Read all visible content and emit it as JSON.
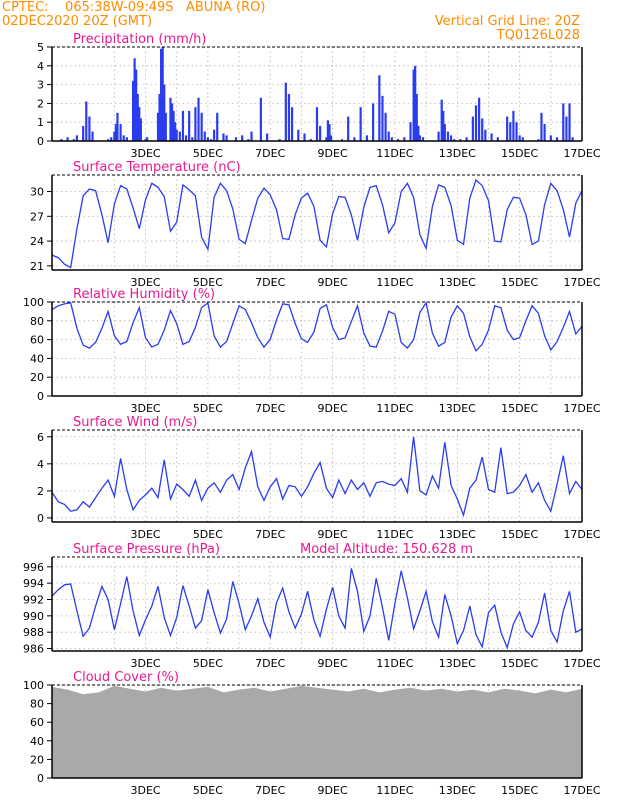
{
  "header": {
    "line1_left": "CPTEC:    065:38W-09:49S   ABUNA (RO)",
    "line2_left": "02DEC2020 20Z (GMT)",
    "line1_right": "Vertical Grid Line: 20Z",
    "line2_right": "TQ0126L028"
  },
  "colors": {
    "header": "#ff8c00",
    "title": "#e8198f",
    "line": "#2a3cf0",
    "bar": "#2a3cf0",
    "cloud": "#a9a9a9"
  },
  "x_labels": [
    "3DEC",
    "5DEC",
    "7DEC",
    "9DEC",
    "11DEC",
    "13DEC",
    "15DEC",
    "17DEC"
  ],
  "chart_data": [
    {
      "type": "bar",
      "title": "Precipitation (mm/h)",
      "ylim": [
        0,
        5
      ],
      "y_ticks": [
        0,
        1,
        2,
        3,
        4,
        5
      ],
      "x": [
        0.3,
        0.5,
        0.7,
        0.8,
        1.0,
        1.1,
        1.2,
        1.3,
        1.8,
        1.9,
        2.0,
        2.05,
        2.1,
        2.2,
        2.3,
        2.4,
        2.6,
        2.65,
        2.7,
        2.75,
        2.8,
        2.85,
        3.0,
        3.05,
        3.4,
        3.45,
        3.5,
        3.55,
        3.6,
        3.65,
        3.8,
        3.85,
        3.9,
        3.95,
        4.0,
        4.1,
        4.2,
        4.3,
        4.4,
        4.5,
        4.6,
        4.7,
        4.8,
        4.9,
        5.0,
        5.1,
        5.2,
        5.3,
        5.5,
        5.6,
        5.9,
        6.1,
        6.3,
        6.4,
        6.7,
        6.9,
        7.3,
        7.5,
        7.6,
        7.7,
        7.9,
        8.1,
        8.3,
        8.5,
        8.6,
        8.8,
        8.85,
        8.9,
        8.95,
        9.3,
        9.5,
        9.7,
        9.9,
        10.1,
        10.3,
        10.5,
        10.6,
        10.7,
        10.8,
        10.9,
        11.1,
        11.3,
        11.5,
        11.6,
        11.65,
        11.7,
        11.75,
        11.8,
        11.9,
        12.4,
        12.5,
        12.55,
        12.6,
        12.7,
        12.8,
        12.9,
        13.1,
        13.3,
        13.5,
        13.6,
        13.7,
        13.8,
        13.9,
        14.1,
        14.3,
        14.6,
        14.7,
        14.8,
        14.9,
        15.0,
        15.1,
        15.6,
        15.7,
        15.8,
        16.0,
        16.2,
        16.4,
        16.5,
        16.6,
        16.7
      ],
      "values": [
        0.1,
        0.2,
        0.1,
        0.3,
        0.8,
        2.1,
        1.3,
        0.5,
        0.1,
        0.2,
        0.5,
        0.9,
        1.5,
        0.9,
        0.3,
        0.2,
        3.2,
        4.4,
        3.8,
        2.5,
        1.8,
        1.2,
        0.1,
        0.2,
        1.5,
        2.5,
        4.9,
        5.0,
        3.0,
        1.5,
        2.3,
        2.0,
        1.6,
        1.0,
        0.6,
        0.5,
        1.6,
        0.3,
        1.6,
        0.2,
        1.8,
        2.3,
        1.5,
        0.5,
        0.2,
        0.1,
        0.6,
        1.5,
        0.4,
        0.3,
        0.2,
        0.3,
        0.1,
        0.5,
        2.3,
        0.4,
        0.1,
        3.1,
        2.5,
        1.8,
        0.6,
        0.4,
        0.1,
        1.8,
        0.8,
        0.2,
        1.1,
        0.9,
        0.3,
        0.1,
        1.3,
        0.2,
        1.8,
        0.3,
        2.0,
        3.5,
        2.4,
        1.5,
        0.5,
        0.2,
        0.1,
        0.2,
        1.0,
        3.8,
        4.0,
        2.5,
        0.8,
        0.3,
        0.2,
        0.5,
        2.2,
        1.6,
        0.9,
        0.5,
        0.3,
        0.1,
        0.1,
        0.2,
        1.3,
        1.9,
        2.3,
        1.2,
        0.6,
        0.4,
        0.2,
        1.3,
        1.0,
        1.6,
        1.0,
        0.3,
        0.2,
        0.1,
        1.5,
        0.9,
        0.3,
        0.2,
        2.0,
        1.3,
        2.0,
        0.2
      ]
    },
    {
      "type": "line",
      "title": "Surface Temperature (nC)",
      "ylim": [
        20.5,
        32
      ],
      "y_ticks": [
        21,
        24,
        27,
        30
      ],
      "x": [
        0.0,
        0.2,
        0.4,
        0.6,
        0.8,
        1.0,
        1.2,
        1.4,
        1.6,
        1.8,
        2.0,
        2.2,
        2.4,
        2.6,
        2.8,
        3.0,
        3.2,
        3.4,
        3.6,
        3.8,
        4.0,
        4.2,
        4.4,
        4.6,
        4.8,
        5.0,
        5.2,
        5.4,
        5.6,
        5.8,
        6.0,
        6.2,
        6.4,
        6.6,
        6.8,
        7.0,
        7.2,
        7.4,
        7.6,
        7.8,
        8.0,
        8.2,
        8.4,
        8.6,
        8.8,
        9.0,
        9.2,
        9.4,
        9.6,
        9.8,
        10.0,
        10.2,
        10.4,
        10.6,
        10.8,
        11.0,
        11.2,
        11.4,
        11.6,
        11.8,
        12.0,
        12.2,
        12.4,
        12.6,
        12.8,
        13.0,
        13.2,
        13.4,
        13.6,
        13.8,
        14.0,
        14.2,
        14.4,
        14.6,
        14.8,
        15.0,
        15.2,
        15.4,
        15.6,
        15.8,
        16.0,
        16.2,
        16.4,
        16.6,
        16.8,
        17.0
      ],
      "values": [
        22.3,
        22.0,
        21.2,
        20.8,
        25.5,
        29.5,
        30.3,
        30.1,
        27.2,
        23.8,
        28.5,
        30.7,
        30.3,
        28.0,
        25.5,
        29.0,
        31.0,
        30.5,
        29.4,
        25.2,
        26.3,
        30.8,
        30.2,
        29.5,
        24.5,
        23.0,
        29.3,
        31.0,
        30.1,
        27.9,
        24.2,
        23.7,
        26.5,
        29.2,
        30.4,
        29.6,
        27.8,
        24.3,
        24.2,
        27.2,
        29.2,
        29.8,
        28.2,
        24.1,
        23.3,
        27.3,
        29.4,
        29.3,
        27.2,
        24.1,
        28.1,
        30.5,
        30.7,
        28.4,
        25.0,
        26.2,
        30.0,
        31.0,
        29.3,
        24.8,
        23.1,
        28.2,
        30.8,
        30.5,
        28.3,
        24.1,
        23.6,
        29.2,
        31.4,
        30.7,
        28.9,
        24.0,
        23.9,
        27.8,
        29.3,
        29.2,
        27.2,
        23.6,
        24.0,
        28.4,
        31.0,
        30.1,
        27.8,
        24.5,
        28.6,
        30.1
      ]
    },
    {
      "type": "line",
      "title": "Relative Humidity (%)",
      "ylim": [
        0,
        100
      ],
      "y_ticks": [
        0,
        20,
        40,
        60,
        80,
        100
      ],
      "x": [
        0.0,
        0.2,
        0.4,
        0.6,
        0.8,
        1.0,
        1.2,
        1.4,
        1.6,
        1.8,
        2.0,
        2.2,
        2.4,
        2.6,
        2.8,
        3.0,
        3.2,
        3.4,
        3.6,
        3.8,
        4.0,
        4.2,
        4.4,
        4.6,
        4.8,
        5.0,
        5.2,
        5.4,
        5.6,
        5.8,
        6.0,
        6.2,
        6.4,
        6.6,
        6.8,
        7.0,
        7.2,
        7.4,
        7.6,
        7.8,
        8.0,
        8.2,
        8.4,
        8.6,
        8.8,
        9.0,
        9.2,
        9.4,
        9.6,
        9.8,
        10.0,
        10.2,
        10.4,
        10.6,
        10.8,
        11.0,
        11.2,
        11.4,
        11.6,
        11.8,
        12.0,
        12.2,
        12.4,
        12.6,
        12.8,
        13.0,
        13.2,
        13.4,
        13.6,
        13.8,
        14.0,
        14.2,
        14.4,
        14.6,
        14.8,
        15.0,
        15.2,
        15.4,
        15.6,
        15.8,
        16.0,
        16.2,
        16.4,
        16.6,
        16.8,
        17.0
      ],
      "values": [
        92,
        96,
        98,
        99,
        72,
        54,
        51,
        57,
        72,
        90,
        64,
        55,
        58,
        78,
        94,
        62,
        52,
        55,
        70,
        91,
        77,
        55,
        58,
        73,
        94,
        99,
        64,
        52,
        58,
        77,
        96,
        92,
        78,
        62,
        52,
        60,
        81,
        98,
        97,
        77,
        61,
        57,
        68,
        93,
        97,
        73,
        60,
        62,
        79,
        96,
        67,
        53,
        52,
        69,
        90,
        87,
        57,
        51,
        60,
        89,
        99,
        67,
        53,
        57,
        84,
        96,
        88,
        63,
        48,
        55,
        70,
        96,
        94,
        70,
        60,
        62,
        80,
        96,
        88,
        64,
        49,
        58,
        73,
        90,
        66,
        74
      ]
    },
    {
      "type": "line",
      "title": "Surface Wind (m/s)",
      "ylim": [
        -0.3,
        6.5
      ],
      "y_ticks": [
        0,
        2,
        4,
        6
      ],
      "x": [
        0.0,
        0.2,
        0.4,
        0.6,
        0.8,
        1.0,
        1.2,
        1.4,
        1.6,
        1.8,
        2.0,
        2.2,
        2.4,
        2.6,
        2.8,
        3.0,
        3.2,
        3.4,
        3.6,
        3.8,
        4.0,
        4.2,
        4.4,
        4.6,
        4.8,
        5.0,
        5.2,
        5.4,
        5.6,
        5.8,
        6.0,
        6.2,
        6.4,
        6.6,
        6.8,
        7.0,
        7.2,
        7.4,
        7.6,
        7.8,
        8.0,
        8.2,
        8.4,
        8.6,
        8.8,
        9.0,
        9.2,
        9.4,
        9.6,
        9.8,
        10.0,
        10.2,
        10.4,
        10.6,
        10.8,
        11.0,
        11.2,
        11.4,
        11.6,
        11.8,
        12.0,
        12.2,
        12.4,
        12.6,
        12.8,
        13.0,
        13.2,
        13.4,
        13.6,
        13.8,
        14.0,
        14.2,
        14.4,
        14.6,
        14.8,
        15.0,
        15.2,
        15.4,
        15.6,
        15.8,
        16.0,
        16.2,
        16.4,
        16.6,
        16.8,
        17.0
      ],
      "values": [
        1.9,
        1.2,
        1.0,
        0.5,
        0.6,
        1.2,
        0.8,
        1.5,
        2.2,
        2.8,
        1.6,
        4.4,
        2.1,
        0.6,
        1.3,
        1.7,
        2.2,
        1.5,
        4.3,
        1.4,
        2.5,
        2.1,
        1.6,
        2.8,
        1.3,
        2.2,
        2.6,
        1.9,
        2.8,
        3.2,
        2.1,
        3.7,
        4.9,
        2.3,
        1.3,
        2.3,
        2.9,
        1.4,
        2.4,
        2.3,
        1.6,
        2.3,
        3.3,
        4.1,
        2.2,
        1.5,
        2.8,
        1.8,
        2.8,
        2.1,
        2.6,
        1.6,
        2.6,
        2.7,
        2.5,
        2.4,
        2.9,
        1.9,
        6.0,
        2.0,
        1.7,
        3.1,
        2.2,
        5.6,
        2.4,
        1.4,
        0.2,
        2.2,
        2.8,
        4.5,
        2.1,
        1.9,
        5.2,
        1.8,
        1.9,
        2.4,
        3.2,
        1.9,
        2.6,
        1.3,
        0.5,
        2.5,
        4.6,
        1.8,
        2.7,
        2.1
      ]
    },
    {
      "type": "line",
      "title": "Surface Pressure (hPa)",
      "annotation": "Model Altitude: 150.628 m",
      "ylim": [
        985.7,
        997.2
      ],
      "y_ticks": [
        986,
        988,
        990,
        992,
        994,
        996
      ],
      "x": [
        0.0,
        0.2,
        0.4,
        0.6,
        0.8,
        1.0,
        1.2,
        1.4,
        1.6,
        1.8,
        2.0,
        2.2,
        2.4,
        2.6,
        2.8,
        3.0,
        3.2,
        3.4,
        3.6,
        3.8,
        4.0,
        4.2,
        4.4,
        4.6,
        4.8,
        5.0,
        5.2,
        5.4,
        5.6,
        5.8,
        6.0,
        6.2,
        6.4,
        6.6,
        6.8,
        7.0,
        7.2,
        7.4,
        7.6,
        7.8,
        8.0,
        8.2,
        8.4,
        8.6,
        8.8,
        9.0,
        9.2,
        9.4,
        9.6,
        9.8,
        10.0,
        10.2,
        10.4,
        10.6,
        10.8,
        11.0,
        11.2,
        11.4,
        11.6,
        11.8,
        12.0,
        12.2,
        12.4,
        12.6,
        12.8,
        13.0,
        13.2,
        13.4,
        13.6,
        13.8,
        14.0,
        14.2,
        14.4,
        14.6,
        14.8,
        15.0,
        15.2,
        15.4,
        15.6,
        15.8,
        16.0,
        16.2,
        16.4,
        16.6,
        16.8,
        17.0
      ],
      "values": [
        992.4,
        993.2,
        993.8,
        993.9,
        990.6,
        987.5,
        988.5,
        991.2,
        993.6,
        992.0,
        988.3,
        991.5,
        994.8,
        990.6,
        987.6,
        989.5,
        991.2,
        993.6,
        989.8,
        987.6,
        989.8,
        993.7,
        991.2,
        988.5,
        989.4,
        993.2,
        990.4,
        987.9,
        989.6,
        994.2,
        991.5,
        988.3,
        990.0,
        992.1,
        989.2,
        987.4,
        991.6,
        993.4,
        990.5,
        988.5,
        990.2,
        993.0,
        989.5,
        987.5,
        990.8,
        993.5,
        990.0,
        988.5,
        995.8,
        993.0,
        988.1,
        990.0,
        994.6,
        991.0,
        987.0,
        991.5,
        995.5,
        992.2,
        988.4,
        990.6,
        993.0,
        989.3,
        987.4,
        992.6,
        990.0,
        986.6,
        988.2,
        991.2,
        987.7,
        986.2,
        990.4,
        991.3,
        988.0,
        986.1,
        989.0,
        990.5,
        988.2,
        987.4,
        989.2,
        992.8,
        988.2,
        986.8,
        990.6,
        993.0,
        988.0,
        988.4
      ]
    },
    {
      "type": "area",
      "title": "Cloud Cover (%)",
      "ylim": [
        0,
        100
      ],
      "y_ticks": [
        0,
        20,
        40,
        60,
        80,
        100
      ],
      "x": [
        0.0,
        0.5,
        1.0,
        1.5,
        2.0,
        2.5,
        3.0,
        3.5,
        4.0,
        4.5,
        5.0,
        5.5,
        6.0,
        6.5,
        7.0,
        7.5,
        8.0,
        8.5,
        9.0,
        9.5,
        10.0,
        10.5,
        11.0,
        11.5,
        12.0,
        12.5,
        13.0,
        13.5,
        14.0,
        14.5,
        15.0,
        15.5,
        16.0,
        16.5,
        17.0
      ],
      "values": [
        98,
        95,
        90,
        92,
        99,
        96,
        93,
        97,
        94,
        96,
        98,
        92,
        95,
        97,
        93,
        96,
        99,
        97,
        95,
        93,
        96,
        92,
        95,
        97,
        94,
        96,
        93,
        95,
        92,
        96,
        94,
        91,
        95,
        92,
        96
      ]
    }
  ]
}
